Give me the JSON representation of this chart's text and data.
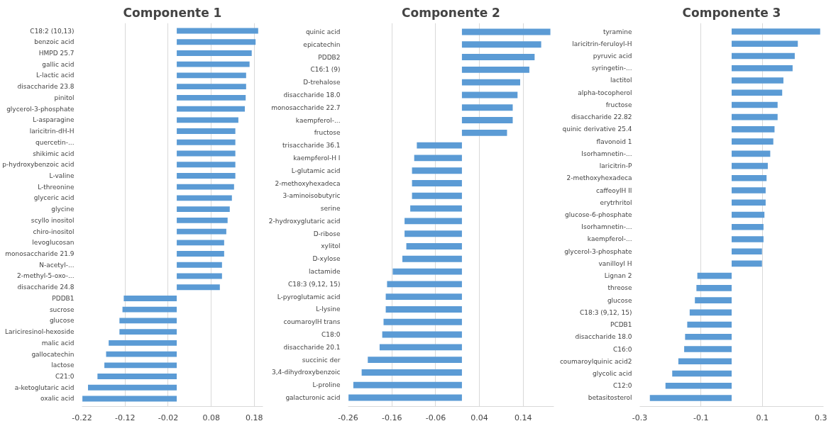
{
  "chart_data": [
    {
      "type": "bar",
      "orientation": "horizontal",
      "title": "Componente 1",
      "color": "#5b9bd5",
      "grid": "x",
      "xlim": [
        -0.22,
        0.2
      ],
      "xticks": [
        -0.22,
        -0.12,
        -0.02,
        0.08,
        0.18
      ],
      "categories": [
        "C18:2 (10,13)",
        "benzoic acid",
        "HMPD 25.7",
        "gallic acid",
        "L-lactic acid",
        "disaccharide 23.8",
        "pinitol",
        "glycerol-3-phosphate",
        "L-asparagine",
        "laricitrin-dH-H",
        "quercetin-...",
        "shikimic acid",
        "p-hydroxybenzoic acid",
        "L-valine",
        "L-threonine",
        "glyceric acid",
        "glycine",
        "scyllo inositol",
        "chiro-inositol",
        "levoglucosan",
        "monosaccharide 21.9",
        "N-acetyl-...",
        "2-methyl-5-oxo-...",
        "disaccharide 24.8",
        "PDDB1",
        "sucrose",
        "glucose",
        "Lariciresinol-hexoside",
        "malic acid",
        "gallocatechin",
        "lactose",
        "C21:0",
        "a-ketoglutaric acid",
        "oxalic acid"
      ],
      "values": [
        0.189,
        0.183,
        0.174,
        0.169,
        0.161,
        0.161,
        0.16,
        0.158,
        0.143,
        0.136,
        0.136,
        0.136,
        0.136,
        0.136,
        0.133,
        0.128,
        0.123,
        0.118,
        0.115,
        0.11,
        0.11,
        0.105,
        0.105,
        0.1,
        -0.123,
        -0.126,
        -0.133,
        -0.133,
        -0.158,
        -0.164,
        -0.168,
        -0.184,
        -0.206,
        -0.219
      ]
    },
    {
      "type": "bar",
      "orientation": "horizontal",
      "title": "Componente 2",
      "color": "#5b9bd5",
      "grid": "x",
      "xlim": [
        -0.26,
        0.21
      ],
      "xticks": [
        -0.26,
        -0.16,
        -0.06,
        0.04,
        0.14
      ],
      "categories": [
        "quinic acid",
        "epicatechin",
        "PDDB2",
        "C16:1 (9)",
        "D-trehalose",
        "disaccharide 18.0",
        "monosaccharide 22.7",
        "kaempferol-...",
        "fructose",
        "trisaccharide 36.1",
        "kaempferol-H I",
        "L-glutamic acid",
        "2-methoxyhexadeca",
        "3-aminoisobutyric",
        "serine",
        "2-hydroxyglutaric acid",
        "D-ribose",
        "xylitol",
        "D-xylose",
        "lactamide",
        "C18:3 (9,12, 15)",
        "L-pyroglutamic acid",
        "L-lysine",
        "coumaroylH trans",
        "C18:0",
        "disaccharide 20.1",
        "succinic der",
        "3,4-dihydroxybenzoic",
        "L-proline",
        "galacturonic acid"
      ],
      "values": [
        0.202,
        0.181,
        0.166,
        0.154,
        0.133,
        0.127,
        0.116,
        0.116,
        0.103,
        -0.103,
        -0.109,
        -0.114,
        -0.114,
        -0.114,
        -0.118,
        -0.131,
        -0.131,
        -0.127,
        -0.136,
        -0.158,
        -0.171,
        -0.174,
        -0.174,
        -0.179,
        -0.182,
        -0.188,
        -0.215,
        -0.229,
        -0.248,
        -0.259
      ]
    },
    {
      "type": "bar",
      "orientation": "horizontal",
      "title": "Componente 3",
      "color": "#5b9bd5",
      "grid": "x",
      "xlim": [
        -0.3,
        0.3
      ],
      "xticks": [
        -0.3,
        -0.1,
        0.1,
        0.3
      ],
      "categories": [
        "tyramine",
        "laricitrin-feruloyl-H",
        "pyruvic acid",
        "syringetin-...",
        "lactitol",
        "alpha-tocopherol",
        "fructose",
        "disaccharide 22.82",
        "quinic derivative 25.4",
        "flavonoid 1",
        "Isorhamnetin-...",
        "laricitrin-P",
        "2-methoxyhexadeca",
        "caffeoylH II",
        "erytrhritol",
        "glucose-6-phosphate",
        "Isorhamnetin-...",
        "kaempferol-...",
        "glycerol-3-phosphate",
        "vanilloyl H",
        "Lignan 2",
        "threose",
        "glucose",
        "C18:3 (9,12, 15)",
        "PCDB1",
        "disaccharide 18.0",
        "C16:0",
        "coumaroylquinic acid2",
        "glycolic acid",
        "C12:0",
        "betasitosterol"
      ],
      "values": [
        0.289,
        0.216,
        0.206,
        0.199,
        0.169,
        0.165,
        0.15,
        0.15,
        0.14,
        0.136,
        0.126,
        0.118,
        0.114,
        0.111,
        0.111,
        0.107,
        0.104,
        0.104,
        0.099,
        0.099,
        -0.112,
        -0.115,
        -0.12,
        -0.137,
        -0.145,
        -0.152,
        -0.155,
        -0.174,
        -0.194,
        -0.216,
        -0.267
      ]
    }
  ]
}
